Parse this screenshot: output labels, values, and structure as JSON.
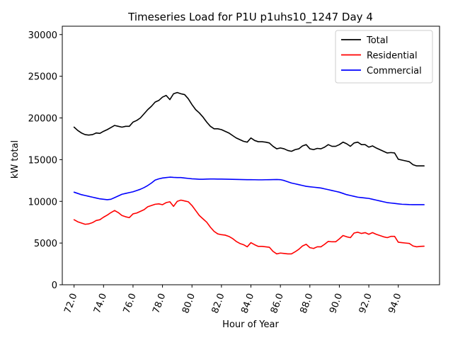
{
  "chart_data": {
    "type": "line",
    "title": "Timeseries Load for P1U p1uhs10_1247  Day 4",
    "xlabel": "Hour of Year",
    "ylabel": "kW total",
    "xlim": [
      71.2,
      96.8
    ],
    "ylim": [
      0,
      31000
    ],
    "xticks": [
      72,
      74,
      76,
      78,
      80,
      82,
      84,
      86,
      88,
      90,
      92,
      94
    ],
    "xtick_labels": [
      "72.0",
      "74.0",
      "76.0",
      "78.0",
      "80.0",
      "82.0",
      "84.0",
      "86.0",
      "88.0",
      "90.0",
      "92.0",
      "94.0"
    ],
    "yticks": [
      0,
      5000,
      10000,
      15000,
      20000,
      25000,
      30000
    ],
    "ytick_labels": [
      "0",
      "5000",
      "10000",
      "15000",
      "20000",
      "25000",
      "30000"
    ],
    "legend_position": "top-right",
    "x": [
      72.0,
      72.25,
      72.5,
      72.75,
      73.0,
      73.25,
      73.5,
      73.75,
      74.0,
      74.25,
      74.5,
      74.75,
      75.0,
      75.25,
      75.5,
      75.75,
      76.0,
      76.25,
      76.5,
      76.75,
      77.0,
      77.25,
      77.5,
      77.75,
      78.0,
      78.25,
      78.5,
      78.75,
      79.0,
      79.25,
      79.5,
      79.75,
      80.0,
      80.25,
      80.5,
      80.75,
      81.0,
      81.25,
      81.5,
      81.75,
      82.0,
      82.25,
      82.5,
      82.75,
      83.0,
      83.25,
      83.5,
      83.75,
      84.0,
      84.25,
      84.5,
      84.75,
      85.0,
      85.25,
      85.5,
      85.75,
      86.0,
      86.25,
      86.5,
      86.75,
      87.0,
      87.25,
      87.5,
      87.75,
      88.0,
      88.25,
      88.5,
      88.75,
      89.0,
      89.25,
      89.5,
      89.75,
      90.0,
      90.25,
      90.5,
      90.75,
      91.0,
      91.25,
      91.5,
      91.75,
      92.0,
      92.25,
      92.5,
      92.75,
      93.0,
      93.25,
      93.5,
      93.75,
      94.0,
      94.25,
      94.5,
      94.75,
      95.0,
      95.25,
      95.5,
      95.75
    ],
    "series": [
      {
        "name": "Total",
        "color": "#000000",
        "values": [
          18900,
          18500,
          18200,
          18000,
          17950,
          18000,
          18200,
          18150,
          18400,
          18600,
          18850,
          19100,
          19000,
          18900,
          19000,
          19000,
          19500,
          19700,
          20000,
          20500,
          21000,
          21400,
          21900,
          22100,
          22500,
          22700,
          22200,
          22900,
          23050,
          22900,
          22800,
          22300,
          21600,
          21000,
          20600,
          20100,
          19500,
          19000,
          18700,
          18700,
          18600,
          18400,
          18200,
          17900,
          17600,
          17400,
          17200,
          17100,
          17600,
          17300,
          17150,
          17150,
          17100,
          17000,
          16600,
          16300,
          16400,
          16300,
          16100,
          16000,
          16200,
          16300,
          16650,
          16800,
          16300,
          16200,
          16350,
          16300,
          16500,
          16800,
          16600,
          16600,
          16800,
          17100,
          16900,
          16600,
          17000,
          17100,
          16800,
          16800,
          16500,
          16650,
          16400,
          16200,
          16000,
          15800,
          15850,
          15800,
          15050,
          14950,
          14850,
          14750,
          14400,
          14250,
          14250,
          14250
        ]
      },
      {
        "name": "Residential",
        "color": "#ff0000",
        "values": [
          7800,
          7550,
          7400,
          7250,
          7300,
          7450,
          7700,
          7800,
          8100,
          8350,
          8650,
          8900,
          8650,
          8300,
          8150,
          8050,
          8500,
          8600,
          8800,
          9000,
          9350,
          9500,
          9650,
          9700,
          9600,
          9850,
          9950,
          9400,
          10000,
          10150,
          10050,
          9950,
          9500,
          8900,
          8300,
          7900,
          7500,
          6900,
          6400,
          6100,
          6000,
          5950,
          5800,
          5550,
          5200,
          4950,
          4800,
          4550,
          5050,
          4800,
          4600,
          4600,
          4550,
          4500,
          4000,
          3700,
          3800,
          3750,
          3700,
          3700,
          3950,
          4250,
          4650,
          4850,
          4450,
          4350,
          4550,
          4550,
          4850,
          5200,
          5150,
          5150,
          5500,
          5900,
          5750,
          5650,
          6200,
          6300,
          6150,
          6250,
          6050,
          6250,
          6050,
          5900,
          5750,
          5650,
          5800,
          5800,
          5100,
          5050,
          5000,
          4950,
          4650,
          4550,
          4600,
          4620
        ]
      },
      {
        "name": "Commercial",
        "color": "#0000ff",
        "values": [
          11100,
          10950,
          10800,
          10700,
          10600,
          10500,
          10400,
          10300,
          10250,
          10200,
          10250,
          10450,
          10650,
          10850,
          10950,
          11050,
          11150,
          11300,
          11450,
          11650,
          11900,
          12200,
          12550,
          12700,
          12800,
          12850,
          12900,
          12870,
          12850,
          12850,
          12800,
          12750,
          12700,
          12680,
          12650,
          12650,
          12670,
          12680,
          12680,
          12670,
          12670,
          12660,
          12650,
          12640,
          12630,
          12620,
          12610,
          12600,
          12600,
          12590,
          12580,
          12580,
          12590,
          12600,
          12610,
          12620,
          12600,
          12500,
          12350,
          12200,
          12100,
          12000,
          11900,
          11800,
          11750,
          11700,
          11650,
          11600,
          11500,
          11400,
          11300,
          11200,
          11100,
          10950,
          10800,
          10700,
          10600,
          10500,
          10450,
          10400,
          10350,
          10250,
          10150,
          10050,
          9950,
          9850,
          9800,
          9750,
          9700,
          9650,
          9630,
          9610,
          9600,
          9600,
          9600,
          9600
        ]
      }
    ]
  }
}
